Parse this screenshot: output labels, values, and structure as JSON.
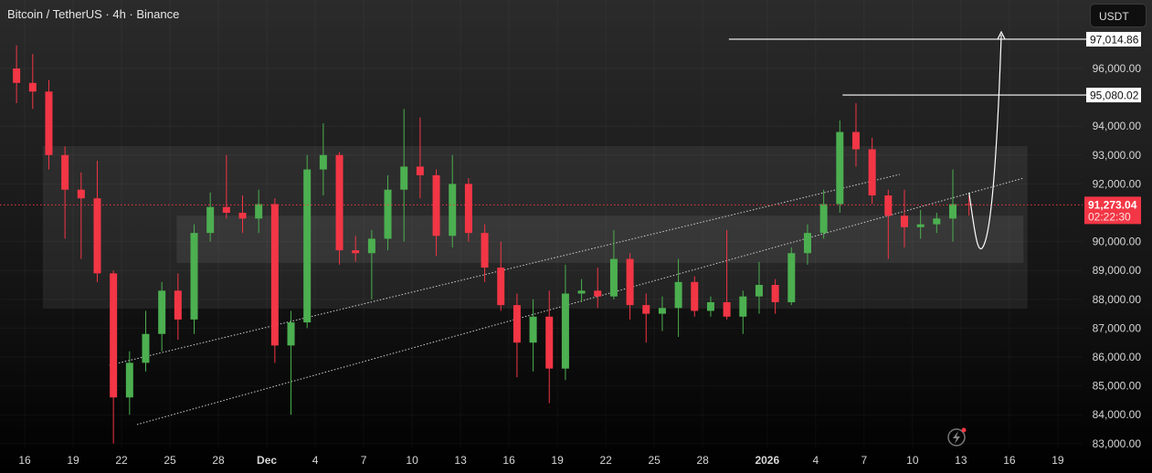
{
  "header": {
    "title": "Bitcoin / TetherUS · 4h · Binance",
    "currency_button": "USDT"
  },
  "colors": {
    "up": "#4caf50",
    "down": "#f23645",
    "price_line": "#f23645",
    "zone": "#ffffff",
    "trend": "#cfcfcf"
  },
  "icons": {
    "bottom": "lightning-icon"
  },
  "chart_data": {
    "type": "candlestick",
    "title": "Bitcoin / TetherUS · 4h · Binance",
    "ylim": [
      83000,
      97500
    ],
    "grid": true,
    "y_ticks": [
      "96,000.00",
      "94,000.00",
      "93,000.00",
      "92,000.00",
      "90,000.00",
      "89,000.00",
      "88,000.00",
      "87,000.00",
      "86,000.00",
      "85,000.00",
      "84,000.00",
      "83,000.00"
    ],
    "y_tick_values": [
      96000,
      94000,
      93000,
      92000,
      90000,
      89000,
      88000,
      87000,
      86000,
      85000,
      84000,
      83000
    ],
    "x_ticks": [
      {
        "date": "2025-11-16",
        "label": "16"
      },
      {
        "date": "2025-11-19",
        "label": "19"
      },
      {
        "date": "2025-11-22",
        "label": "22"
      },
      {
        "date": "2025-11-25",
        "label": "25"
      },
      {
        "date": "2025-11-28",
        "label": "28"
      },
      {
        "date": "2025-12-01",
        "label": "Dec"
      },
      {
        "date": "2025-12-04",
        "label": "4"
      },
      {
        "date": "2025-12-07",
        "label": "7"
      },
      {
        "date": "2025-12-10",
        "label": "10"
      },
      {
        "date": "2025-12-13",
        "label": "13"
      },
      {
        "date": "2025-12-16",
        "label": "16"
      },
      {
        "date": "2025-12-19",
        "label": "19"
      },
      {
        "date": "2025-12-22",
        "label": "22"
      },
      {
        "date": "2025-12-25",
        "label": "25"
      },
      {
        "date": "2025-12-28",
        "label": "28"
      },
      {
        "date": "2026-01-01",
        "label": "2026"
      },
      {
        "date": "2026-01-04",
        "label": "4"
      },
      {
        "date": "2026-01-07",
        "label": "7"
      },
      {
        "date": "2026-01-10",
        "label": "10"
      },
      {
        "date": "2026-01-13",
        "label": "13"
      },
      {
        "date": "2026-01-16",
        "label": "16"
      },
      {
        "date": "2026-01-19",
        "label": "19"
      }
    ],
    "candles": [
      [
        "2025-11-15",
        96000,
        96800,
        94800,
        95500
      ],
      [
        "2025-11-16",
        95500,
        96500,
        94600,
        95200
      ],
      [
        "2025-11-17",
        95200,
        95600,
        92500,
        93000
      ],
      [
        "2025-11-18",
        93000,
        93300,
        90100,
        91800
      ],
      [
        "2025-11-19",
        91800,
        92400,
        89400,
        91500
      ],
      [
        "2025-11-20",
        91500,
        92800,
        88600,
        88900
      ],
      [
        "2025-11-21",
        88900,
        89000,
        83000,
        84600
      ],
      [
        "2025-11-22",
        84600,
        86200,
        84000,
        85800
      ],
      [
        "2025-11-23",
        85800,
        87600,
        85500,
        86800
      ],
      [
        "2025-11-24",
        86800,
        88600,
        86200,
        88300
      ],
      [
        "2025-11-25",
        88300,
        88900,
        86600,
        87300
      ],
      [
        "2025-11-26",
        87300,
        90600,
        86800,
        90300
      ],
      [
        "2025-11-27",
        90300,
        91700,
        90000,
        91200
      ],
      [
        "2025-11-28",
        91200,
        93000,
        90800,
        91000
      ],
      [
        "2025-11-29",
        91000,
        91600,
        90300,
        90800
      ],
      [
        "2025-11-30",
        90800,
        91800,
        90300,
        91300
      ],
      [
        "2025-12-01",
        91300,
        91500,
        85800,
        86400
      ],
      [
        "2025-12-02",
        86400,
        87600,
        84000,
        87200
      ],
      [
        "2025-12-03",
        87200,
        93000,
        87000,
        92500
      ],
      [
        "2025-12-04",
        92500,
        94100,
        91600,
        93000
      ],
      [
        "2025-12-05",
        93000,
        93100,
        89200,
        89700
      ],
      [
        "2025-12-06",
        89700,
        90200,
        89300,
        89600
      ],
      [
        "2025-12-07",
        89600,
        90400,
        88000,
        90100
      ],
      [
        "2025-12-08",
        90100,
        92300,
        89700,
        91800
      ],
      [
        "2025-12-09",
        91800,
        94600,
        90000,
        92600
      ],
      [
        "2025-12-10",
        92600,
        94300,
        91500,
        92300
      ],
      [
        "2025-12-11",
        92300,
        92500,
        89500,
        90200
      ],
      [
        "2025-12-12",
        90200,
        93000,
        89800,
        92000
      ],
      [
        "2025-12-13",
        92000,
        92200,
        90000,
        90300
      ],
      [
        "2025-12-14",
        90300,
        90600,
        88600,
        89100
      ],
      [
        "2025-12-15",
        89100,
        90000,
        87600,
        87800
      ],
      [
        "2025-12-16",
        87800,
        88200,
        85300,
        86500
      ],
      [
        "2025-12-17",
        86500,
        88000,
        85500,
        87400
      ],
      [
        "2025-12-18",
        87400,
        88300,
        84400,
        85600
      ],
      [
        "2025-12-19",
        85600,
        89200,
        85200,
        88200
      ],
      [
        "2025-12-20",
        88200,
        88700,
        87900,
        88300
      ],
      [
        "2025-12-21",
        88300,
        89100,
        87700,
        88100
      ],
      [
        "2025-12-22",
        88100,
        90400,
        88000,
        89400
      ],
      [
        "2025-12-23",
        89400,
        89600,
        87300,
        87800
      ],
      [
        "2025-12-24",
        87800,
        88200,
        86500,
        87500
      ],
      [
        "2025-12-25",
        87500,
        88100,
        86900,
        87700
      ],
      [
        "2025-12-26",
        87700,
        89400,
        86700,
        88600
      ],
      [
        "2025-12-27",
        88600,
        88800,
        87400,
        87600
      ],
      [
        "2025-12-28",
        87600,
        88100,
        87400,
        87900
      ],
      [
        "2025-12-29",
        87900,
        90400,
        87300,
        87400
      ],
      [
        "2025-12-30",
        87400,
        88300,
        86800,
        88100
      ],
      [
        "2025-12-31",
        88100,
        89300,
        87500,
        88500
      ],
      [
        "2026-01-01",
        88500,
        88700,
        87500,
        87900
      ],
      [
        "2026-01-02",
        87900,
        89800,
        87800,
        89600
      ],
      [
        "2026-01-03",
        89600,
        90600,
        89200,
        90300
      ],
      [
        "2026-01-04",
        90300,
        91800,
        90100,
        91300
      ],
      [
        "2026-01-05",
        91300,
        94200,
        91000,
        93800
      ],
      [
        "2026-01-06",
        93800,
        94800,
        92600,
        93200
      ],
      [
        "2026-01-07",
        93200,
        93600,
        91300,
        91600
      ],
      [
        "2026-01-08",
        91600,
        91800,
        89400,
        90900
      ],
      [
        "2026-01-09",
        90900,
        91800,
        89800,
        90500
      ],
      [
        "2026-01-10",
        90500,
        91100,
        90100,
        90600
      ],
      [
        "2026-01-11",
        90600,
        91000,
        90300,
        90800
      ],
      [
        "2026-01-12",
        90800,
        92500,
        90000,
        91300
      ],
      [
        "2026-01-13",
        91300,
        91600,
        90900,
        91273.04
      ]
    ],
    "current_price": {
      "value": 91273.04,
      "label": "91,273.04",
      "countdown": "02:22:30"
    },
    "levels": [
      {
        "value": 97014.86,
        "label": "97,014.86",
        "from": "2025-12-29T15:00"
      },
      {
        "value": 95080.02,
        "label": "95,080.02",
        "from": "2026-01-05T16:00"
      }
    ],
    "zones": [
      {
        "from": "2025-11-17T03:00",
        "to": "2026-01-17T03:00",
        "top": 93310,
        "bottom": 87680
      },
      {
        "from": "2025-11-25T10:00",
        "to": "2026-01-16T21:00",
        "top": 90900,
        "bottom": 89260
      }
    ],
    "trendlines": [
      {
        "from": [
          "2025-11-21T06:00",
          85715
        ],
        "to": [
          "2026-01-09T05:00",
          92330
        ]
      },
      {
        "from": [
          "2025-11-22T23:00",
          83660
        ],
        "to": [
          "2026-01-16T21:00",
          92200
        ]
      }
    ],
    "projection": [
      [
        "2026-01-13T12:00",
        91700
      ],
      [
        "2026-01-14T12:00",
        90000
      ],
      [
        "2026-01-15T12:00",
        97300
      ]
    ]
  }
}
